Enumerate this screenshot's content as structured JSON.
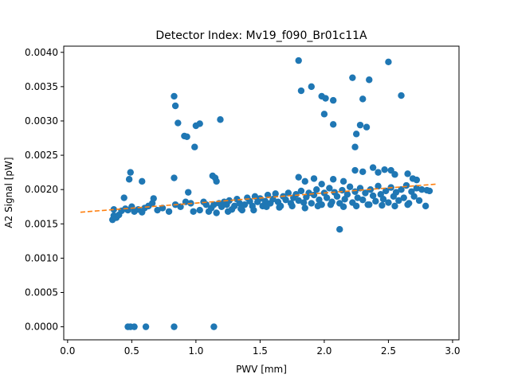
{
  "chart_data": {
    "type": "scatter",
    "title": "Detector Index: Mv19_f090_Br01c11A",
    "xlabel": "PWV [mm]",
    "ylabel": "A2 Signal [pW]",
    "xlim": [
      -0.03,
      3.05
    ],
    "ylim": [
      -0.00019,
      0.00409
    ],
    "xticks": [
      0.0,
      0.5,
      1.0,
      1.5,
      2.0,
      2.5,
      3.0
    ],
    "xtick_labels": [
      "0.0",
      "0.5",
      "1.0",
      "1.5",
      "2.0",
      "2.5",
      "3.0"
    ],
    "yticks": [
      0.0,
      0.0005,
      0.001,
      0.0015,
      0.002,
      0.0025,
      0.003,
      0.0035,
      0.004
    ],
    "ytick_labels": [
      "0.0000",
      "0.0005",
      "0.0010",
      "0.0015",
      "0.0020",
      "0.0025",
      "0.0030",
      "0.0035",
      "0.0040"
    ],
    "colors": {
      "points": "#1f77b4",
      "fit": "#ff7f0e"
    },
    "series": [
      {
        "name": "data",
        "style": "markers",
        "points": [
          [
            0.47,
            0.0
          ],
          [
            0.49,
            0.0
          ],
          [
            0.52,
            0.0
          ],
          [
            0.61,
            0.0
          ],
          [
            0.83,
            0.0
          ],
          [
            1.14,
            0.0
          ],
          [
            0.83,
            0.00336
          ],
          [
            0.84,
            0.00322
          ],
          [
            0.86,
            0.00297
          ],
          [
            0.91,
            0.00278
          ],
          [
            0.93,
            0.00277
          ],
          [
            0.99,
            0.00262
          ],
          [
            1.0,
            0.00293
          ],
          [
            1.03,
            0.00296
          ],
          [
            1.19,
            0.00302
          ],
          [
            0.48,
            0.00215
          ],
          [
            0.49,
            0.00225
          ],
          [
            0.58,
            0.00212
          ],
          [
            0.44,
            0.00188
          ],
          [
            0.83,
            0.00217
          ],
          [
            0.94,
            0.00196
          ],
          [
            1.13,
            0.0022
          ],
          [
            1.15,
            0.00217
          ],
          [
            1.16,
            0.00212
          ],
          [
            1.8,
            0.00388
          ],
          [
            1.82,
            0.00344
          ],
          [
            1.9,
            0.0035
          ],
          [
            1.98,
            0.00336
          ],
          [
            2.01,
            0.00333
          ],
          [
            2.07,
            0.0033
          ],
          [
            2.22,
            0.00363
          ],
          [
            2.3,
            0.00332
          ],
          [
            2.33,
            0.00291
          ],
          [
            2.35,
            0.0036
          ],
          [
            2.5,
            0.00386
          ],
          [
            2.6,
            0.00337
          ],
          [
            2.0,
            0.0031
          ],
          [
            2.07,
            0.00295
          ],
          [
            2.25,
            0.00281
          ],
          [
            2.24,
            0.00262
          ],
          [
            2.28,
            0.00294
          ],
          [
            2.12,
            0.00142
          ],
          [
            1.8,
            0.00218
          ],
          [
            1.85,
            0.00212
          ],
          [
            1.92,
            0.00216
          ],
          [
            1.98,
            0.00208
          ],
          [
            2.07,
            0.00215
          ],
          [
            2.15,
            0.00212
          ],
          [
            2.24,
            0.00228
          ],
          [
            2.3,
            0.00226
          ],
          [
            2.38,
            0.00232
          ],
          [
            2.42,
            0.00225
          ],
          [
            2.47,
            0.00229
          ],
          [
            2.52,
            0.00228
          ],
          [
            2.55,
            0.00222
          ],
          [
            2.65,
            0.00223
          ],
          [
            2.69,
            0.00216
          ],
          [
            2.72,
            0.00214
          ],
          [
            0.35,
            0.00156
          ],
          [
            0.36,
            0.00162
          ],
          [
            0.37,
            0.0016
          ],
          [
            0.38,
            0.00159
          ],
          [
            0.4,
            0.00163
          ],
          [
            0.36,
            0.00171
          ],
          [
            0.42,
            0.00169
          ],
          [
            0.45,
            0.00172
          ],
          [
            0.47,
            0.0017
          ],
          [
            0.5,
            0.00175
          ],
          [
            0.52,
            0.00168
          ],
          [
            0.55,
            0.00171
          ],
          [
            0.58,
            0.00167
          ],
          [
            0.6,
            0.00173
          ],
          [
            0.63,
            0.00176
          ],
          [
            0.66,
            0.0018
          ],
          [
            0.67,
            0.00187
          ],
          [
            0.7,
            0.0017
          ],
          [
            0.74,
            0.00173
          ],
          [
            0.79,
            0.00168
          ],
          [
            0.84,
            0.00178
          ],
          [
            0.88,
            0.00175
          ],
          [
            0.92,
            0.00182
          ],
          [
            0.96,
            0.0018
          ],
          [
            0.98,
            0.00168
          ],
          [
            1.03,
            0.0017
          ],
          [
            1.06,
            0.00182
          ],
          [
            1.08,
            0.00178
          ],
          [
            1.1,
            0.00168
          ],
          [
            1.12,
            0.00173
          ],
          [
            1.14,
            0.00178
          ],
          [
            1.16,
            0.00166
          ],
          [
            1.18,
            0.0018
          ],
          [
            1.2,
            0.00175
          ],
          [
            1.22,
            0.00182
          ],
          [
            1.24,
            0.00178
          ],
          [
            1.26,
            0.00184
          ],
          [
            1.28,
            0.00171
          ],
          [
            1.3,
            0.00176
          ],
          [
            1.32,
            0.00186
          ],
          [
            1.34,
            0.0018
          ],
          [
            1.36,
            0.0017
          ],
          [
            1.38,
            0.00178
          ],
          [
            1.4,
            0.00188
          ],
          [
            1.42,
            0.00183
          ],
          [
            1.44,
            0.00176
          ],
          [
            1.46,
            0.0019
          ],
          [
            1.48,
            0.00182
          ],
          [
            1.5,
            0.00187
          ],
          [
            1.52,
            0.00176
          ],
          [
            1.54,
            0.00183
          ],
          [
            1.56,
            0.00192
          ],
          [
            1.58,
            0.0018
          ],
          [
            1.6,
            0.00186
          ],
          [
            1.62,
            0.00194
          ],
          [
            1.64,
            0.00182
          ],
          [
            1.66,
            0.00176
          ],
          [
            1.68,
            0.0019
          ],
          [
            1.7,
            0.00185
          ],
          [
            1.72,
            0.00195
          ],
          [
            1.74,
            0.0018
          ],
          [
            1.76,
            0.00188
          ],
          [
            1.78,
            0.00193
          ],
          [
            1.8,
            0.00184
          ],
          [
            1.82,
            0.00198
          ],
          [
            1.84,
            0.00181
          ],
          [
            1.86,
            0.00189
          ],
          [
            1.88,
            0.00195
          ],
          [
            1.9,
            0.0018
          ],
          [
            1.92,
            0.00192
          ],
          [
            1.94,
            0.002
          ],
          [
            1.96,
            0.00185
          ],
          [
            1.98,
            0.00178
          ],
          [
            2.0,
            0.00195
          ],
          [
            2.02,
            0.00188
          ],
          [
            2.04,
            0.00202
          ],
          [
            2.06,
            0.00182
          ],
          [
            2.08,
            0.00196
          ],
          [
            2.1,
            0.0019
          ],
          [
            2.12,
            0.0018
          ],
          [
            2.14,
            0.00199
          ],
          [
            2.16,
            0.00186
          ],
          [
            2.18,
            0.00193
          ],
          [
            2.2,
            0.00204
          ],
          [
            2.22,
            0.00181
          ],
          [
            2.24,
            0.00197
          ],
          [
            2.26,
            0.00188
          ],
          [
            2.28,
            0.00202
          ],
          [
            2.3,
            0.00185
          ],
          [
            2.32,
            0.00195
          ],
          [
            2.34,
            0.00178
          ],
          [
            2.36,
            0.002
          ],
          [
            2.38,
            0.00191
          ],
          [
            2.4,
            0.00183
          ],
          [
            2.42,
            0.00205
          ],
          [
            2.44,
            0.00193
          ],
          [
            2.46,
            0.00186
          ],
          [
            2.48,
            0.00198
          ],
          [
            2.5,
            0.00181
          ],
          [
            2.52,
            0.00203
          ],
          [
            2.54,
            0.0019
          ],
          [
            2.56,
            0.00196
          ],
          [
            2.58,
            0.00184
          ],
          [
            2.6,
            0.002
          ],
          [
            2.62,
            0.00188
          ],
          [
            2.64,
            0.00206
          ],
          [
            2.66,
            0.0018
          ],
          [
            2.68,
            0.00197
          ],
          [
            2.7,
            0.0019
          ],
          [
            2.72,
            0.00202
          ],
          [
            2.74,
            0.00184
          ],
          [
            2.76,
            0.002
          ],
          [
            2.79,
            0.00176
          ],
          [
            2.8,
            0.00199
          ],
          [
            2.82,
            0.00198
          ],
          [
            1.25,
            0.00168
          ],
          [
            1.35,
            0.00172
          ],
          [
            1.45,
            0.0017
          ],
          [
            1.55,
            0.00175
          ],
          [
            1.65,
            0.00174
          ],
          [
            1.75,
            0.00176
          ],
          [
            1.85,
            0.00173
          ],
          [
            1.95,
            0.00176
          ],
          [
            2.05,
            0.00178
          ],
          [
            2.15,
            0.00175
          ],
          [
            2.25,
            0.00176
          ],
          [
            2.35,
            0.00178
          ],
          [
            2.45,
            0.00177
          ],
          [
            2.55,
            0.00176
          ],
          [
            2.65,
            0.00178
          ]
        ]
      },
      {
        "name": "fit",
        "style": "dashed",
        "points": [
          [
            0.1,
            0.00167
          ],
          [
            2.88,
            0.00208
          ]
        ]
      }
    ]
  }
}
